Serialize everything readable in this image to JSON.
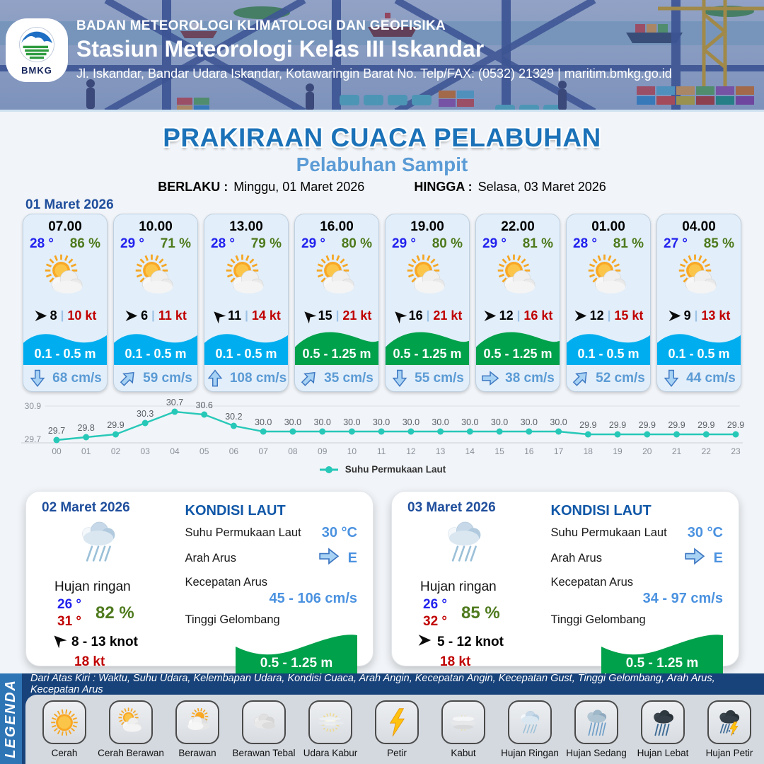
{
  "header": {
    "line1": "BADAN METEOROLOGI KLIMATOLOGI DAN GEOFISIKA",
    "line2": "Stasiun Meteorologi Kelas III Iskandar",
    "line3": "Jl. Iskandar, Bandar Udara Iskandar, Kotawaringin Barat No. Telp/FAX: (0532) 21329 | maritim.bmkg.go.id",
    "logo_text": "BMKG"
  },
  "title": {
    "main": "PRAKIRAAN CUACA PELABUHAN",
    "subtitle": "Pelabuhan Sampit",
    "berlaku_label": "BERLAKU :",
    "berlaku_value": "Minggu, 01 Maret 2026",
    "hingga_label": "HINGGA :",
    "hingga_value": "Selasa, 03 Maret 2026"
  },
  "day1": {
    "date": "01 Maret 2026",
    "cards": [
      {
        "time": "07.00",
        "temp": "28 °",
        "humidity": "86 %",
        "weather_icon": "sun-cloud",
        "wind_speed": "8",
        "wind_gust": "10 kt",
        "wind_dir_deg": 0,
        "wave": "0.1 - 0.5 m",
        "wave_color": "blue",
        "current": "68 cm/s",
        "current_dir": "down"
      },
      {
        "time": "10.00",
        "temp": "29 °",
        "humidity": "71 %",
        "weather_icon": "sun-cloud",
        "wind_speed": "6",
        "wind_gust": "11 kt",
        "wind_dir_deg": 0,
        "wave": "0.1 - 0.5 m",
        "wave_color": "blue",
        "current": "59 cm/s",
        "current_dir": "up-right"
      },
      {
        "time": "13.00",
        "temp": "28 °",
        "humidity": "79 %",
        "weather_icon": "sun-cloud",
        "wind_speed": "11",
        "wind_gust": "14 kt",
        "wind_dir_deg": -135,
        "wave": "0.1 - 0.5 m",
        "wave_color": "blue",
        "current": "108 cm/s",
        "current_dir": "up"
      },
      {
        "time": "16.00",
        "temp": "29 °",
        "humidity": "80 %",
        "weather_icon": "sun-cloud",
        "wind_speed": "15",
        "wind_gust": "21 kt",
        "wind_dir_deg": -135,
        "wave": "0.5 - 1.25 m",
        "wave_color": "green",
        "current": "35 cm/s",
        "current_dir": "up-right"
      },
      {
        "time": "19.00",
        "temp": "29 °",
        "humidity": "80 %",
        "weather_icon": "sun-cloud",
        "wind_speed": "16",
        "wind_gust": "21 kt",
        "wind_dir_deg": -135,
        "wave": "0.5 - 1.25 m",
        "wave_color": "green",
        "current": "55 cm/s",
        "current_dir": "down"
      },
      {
        "time": "22.00",
        "temp": "29 °",
        "humidity": "81 %",
        "weather_icon": "sun-cloud",
        "wind_speed": "12",
        "wind_gust": "16 kt",
        "wind_dir_deg": 0,
        "wave": "0.5 - 1.25 m",
        "wave_color": "green",
        "current": "38 cm/s",
        "current_dir": "right"
      },
      {
        "time": "01.00",
        "temp": "28 °",
        "humidity": "81 %",
        "weather_icon": "sun-cloud",
        "wind_speed": "12",
        "wind_gust": "15 kt",
        "wind_dir_deg": 0,
        "wave": "0.1 - 0.5 m",
        "wave_color": "blue",
        "current": "52 cm/s",
        "current_dir": "up-right"
      },
      {
        "time": "04.00",
        "temp": "27 °",
        "humidity": "85 %",
        "weather_icon": "sun-cloud",
        "wind_speed": "9",
        "wind_gust": "13 kt",
        "wind_dir_deg": 0,
        "wave": "0.1 - 0.5 m",
        "wave_color": "blue",
        "current": "44 cm/s",
        "current_dir": "down"
      }
    ]
  },
  "chart_data": {
    "type": "line",
    "series_name": "Suhu Permukaan Laut",
    "x": [
      "00",
      "01",
      "02",
      "03",
      "04",
      "05",
      "06",
      "07",
      "08",
      "09",
      "10",
      "11",
      "12",
      "13",
      "14",
      "15",
      "16",
      "17",
      "18",
      "19",
      "20",
      "21",
      "22",
      "23"
    ],
    "values": [
      29.7,
      29.8,
      29.9,
      30.3,
      30.7,
      30.6,
      30.2,
      30.0,
      30.0,
      30.0,
      30.0,
      30.0,
      30.0,
      30.0,
      30.0,
      30.0,
      30.0,
      30.0,
      29.9,
      29.9,
      29.9,
      29.9,
      29.9,
      29.9
    ],
    "ylim": [
      29.7,
      30.9
    ],
    "yticks": [
      "30.9",
      "29.7"
    ],
    "line_color": "#27C8B8",
    "grid": true,
    "legend_position": "bottom"
  },
  "days": [
    {
      "date": "02 Maret 2026",
      "condition": "Hujan ringan",
      "weather_icon": "rain-light",
      "temp_min": "26 °",
      "temp_max": "31 °",
      "humidity": "82 %",
      "wind_range": "8  - 13 knot",
      "gust": "18 kt",
      "wind_dir_deg": -135,
      "sea": {
        "heading": "KONDISI LAUT",
        "sst_label": "Suhu Permukaan Laut",
        "sst": "30 °C",
        "arah_label": "Arah Arus",
        "arah": "E",
        "arah_dir": "right",
        "kec_label": "Kecepatan Arus",
        "kec": "45  - 106 cm/s",
        "wave_label": "Tinggi Gelombang",
        "wave": "0.5 - 1.25 m"
      }
    },
    {
      "date": "03 Maret 2026",
      "condition": "Hujan ringan",
      "weather_icon": "rain-light",
      "temp_min": "26 °",
      "temp_max": "32 °",
      "humidity": "85 %",
      "wind_range": "5  - 12 knot",
      "gust": "18 kt",
      "wind_dir_deg": 0,
      "sea": {
        "heading": "KONDISI LAUT",
        "sst_label": "Suhu Permukaan Laut",
        "sst": "30 °C",
        "arah_label": "Arah Arus",
        "arah": "E",
        "arah_dir": "right",
        "kec_label": "Kecepatan Arus",
        "kec": "34 - 97 cm/s",
        "wave_label": "Tinggi Gelombang",
        "wave": "0.5 - 1.25 m"
      }
    }
  ],
  "legend": {
    "title": "LEGENDA",
    "description": "Dari Atas Kiri : Waktu, Suhu Udara, Kelembapan Udara, Kondisi Cuaca, Arah Angin, Kecepatan Angin, Kecepatan Gust, Tinggi Gelombang, Arah Arus, Kecepatan Arus",
    "items": [
      {
        "label": "Cerah",
        "icon": "sun"
      },
      {
        "label": "Cerah Berawan",
        "icon": "sun-cloud"
      },
      {
        "label": "Berawan",
        "icon": "cloud-sun"
      },
      {
        "label": "Berawan Tebal",
        "icon": "clouds"
      },
      {
        "label": "Udara Kabur",
        "icon": "haze-sun"
      },
      {
        "label": "Petir",
        "icon": "lightning"
      },
      {
        "label": "Kabut",
        "icon": "fog"
      },
      {
        "label": "Hujan Ringan",
        "icon": "rain-light"
      },
      {
        "label": "Hujan Sedang",
        "icon": "rain-medium"
      },
      {
        "label": "Hujan Lebat",
        "icon": "rain-heavy"
      },
      {
        "label": "Hujan Petir",
        "icon": "rain-lightning"
      }
    ]
  },
  "colors": {
    "title_blue": "#1B72B8",
    "subtitle_blue": "#5B9BD5",
    "date_blue": "#1F4E9C",
    "temp_blue": "#2222EE",
    "humidity_green": "#4E7A1D",
    "gust_red": "#C00000",
    "wave_blue": "#00AEEF",
    "wave_green": "#00A14B",
    "current_blue": "#5B9BD5",
    "chart_teal": "#27C8B8",
    "legend_navy": "#17427A",
    "legend_strip_blue": "#2E75B6"
  }
}
